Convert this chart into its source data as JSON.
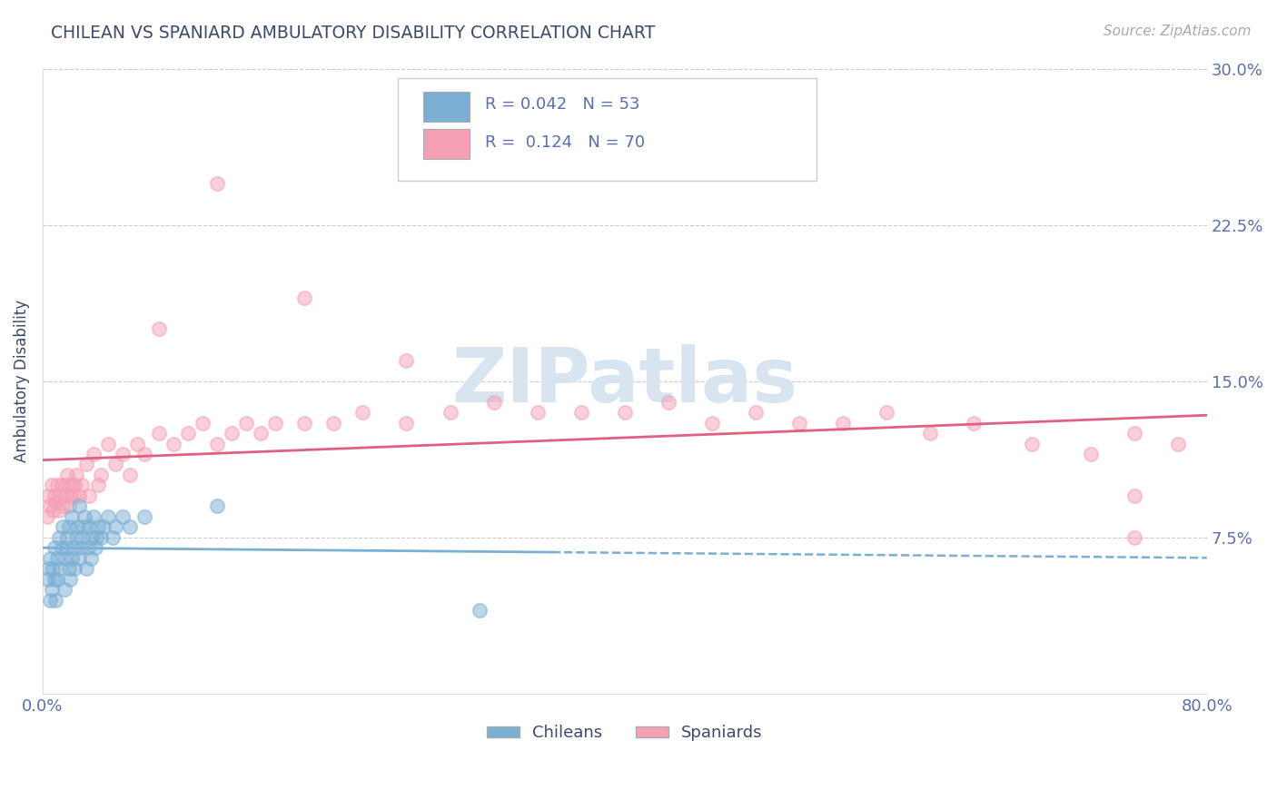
{
  "title": "CHILEAN VS SPANIARD AMBULATORY DISABILITY CORRELATION CHART",
  "source": "Source: ZipAtlas.com",
  "ylabel": "Ambulatory Disability",
  "xlim": [
    0.0,
    0.8
  ],
  "ylim": [
    0.0,
    0.3
  ],
  "xticks": [
    0.0,
    0.1,
    0.2,
    0.3,
    0.4,
    0.5,
    0.6,
    0.7,
    0.8
  ],
  "xticklabels": [
    "0.0%",
    "",
    "",
    "",
    "",
    "",
    "",
    "",
    "80.0%"
  ],
  "yticks": [
    0.0,
    0.075,
    0.15,
    0.225,
    0.3
  ],
  "yticklabels": [
    "",
    "7.5%",
    "15.0%",
    "22.5%",
    "30.0%"
  ],
  "legend_r1": "0.042",
  "legend_n1": "53",
  "legend_r2": "0.124",
  "legend_n2": "70",
  "blue_color": "#7BAFD4",
  "pink_color": "#F5A0B5",
  "axis_color": "#5B6FA8",
  "title_color": "#3D4B6B",
  "watermark_color": "#D8E4F0",
  "chileans_x": [
    0.003,
    0.004,
    0.005,
    0.005,
    0.006,
    0.007,
    0.008,
    0.008,
    0.009,
    0.01,
    0.01,
    0.011,
    0.012,
    0.013,
    0.014,
    0.015,
    0.015,
    0.016,
    0.017,
    0.018,
    0.018,
    0.019,
    0.02,
    0.02,
    0.021,
    0.022,
    0.023,
    0.024,
    0.025,
    0.025,
    0.026,
    0.027,
    0.028,
    0.029,
    0.03,
    0.031,
    0.032,
    0.033,
    0.034,
    0.035,
    0.036,
    0.037,
    0.038,
    0.04,
    0.042,
    0.045,
    0.048,
    0.05,
    0.055,
    0.06,
    0.07,
    0.12,
    0.3
  ],
  "chileans_y": [
    0.055,
    0.06,
    0.045,
    0.065,
    0.05,
    0.06,
    0.07,
    0.055,
    0.045,
    0.065,
    0.055,
    0.075,
    0.06,
    0.07,
    0.08,
    0.05,
    0.065,
    0.07,
    0.075,
    0.06,
    0.08,
    0.055,
    0.065,
    0.085,
    0.07,
    0.06,
    0.075,
    0.08,
    0.065,
    0.09,
    0.07,
    0.075,
    0.08,
    0.085,
    0.06,
    0.07,
    0.08,
    0.065,
    0.075,
    0.085,
    0.07,
    0.075,
    0.08,
    0.075,
    0.08,
    0.085,
    0.075,
    0.08,
    0.085,
    0.08,
    0.085,
    0.09,
    0.04
  ],
  "spaniards_x": [
    0.003,
    0.004,
    0.005,
    0.006,
    0.007,
    0.008,
    0.009,
    0.01,
    0.011,
    0.012,
    0.013,
    0.014,
    0.015,
    0.016,
    0.017,
    0.018,
    0.019,
    0.02,
    0.021,
    0.022,
    0.023,
    0.025,
    0.027,
    0.03,
    0.032,
    0.035,
    0.038,
    0.04,
    0.045,
    0.05,
    0.055,
    0.06,
    0.065,
    0.07,
    0.08,
    0.09,
    0.1,
    0.11,
    0.12,
    0.13,
    0.14,
    0.15,
    0.16,
    0.18,
    0.2,
    0.22,
    0.25,
    0.28,
    0.31,
    0.34,
    0.37,
    0.4,
    0.43,
    0.46,
    0.49,
    0.52,
    0.55,
    0.58,
    0.61,
    0.64,
    0.68,
    0.72,
    0.75,
    0.78,
    0.12,
    0.18,
    0.08,
    0.25,
    0.75,
    0.75
  ],
  "spaniards_y": [
    0.085,
    0.095,
    0.09,
    0.1,
    0.088,
    0.095,
    0.092,
    0.1,
    0.088,
    0.095,
    0.1,
    0.09,
    0.095,
    0.1,
    0.105,
    0.09,
    0.095,
    0.1,
    0.095,
    0.1,
    0.105,
    0.095,
    0.1,
    0.11,
    0.095,
    0.115,
    0.1,
    0.105,
    0.12,
    0.11,
    0.115,
    0.105,
    0.12,
    0.115,
    0.125,
    0.12,
    0.125,
    0.13,
    0.12,
    0.125,
    0.13,
    0.125,
    0.13,
    0.13,
    0.13,
    0.135,
    0.13,
    0.135,
    0.14,
    0.135,
    0.135,
    0.135,
    0.14,
    0.13,
    0.135,
    0.13,
    0.13,
    0.135,
    0.125,
    0.13,
    0.12,
    0.115,
    0.125,
    0.12,
    0.245,
    0.19,
    0.175,
    0.16,
    0.095,
    0.075
  ]
}
